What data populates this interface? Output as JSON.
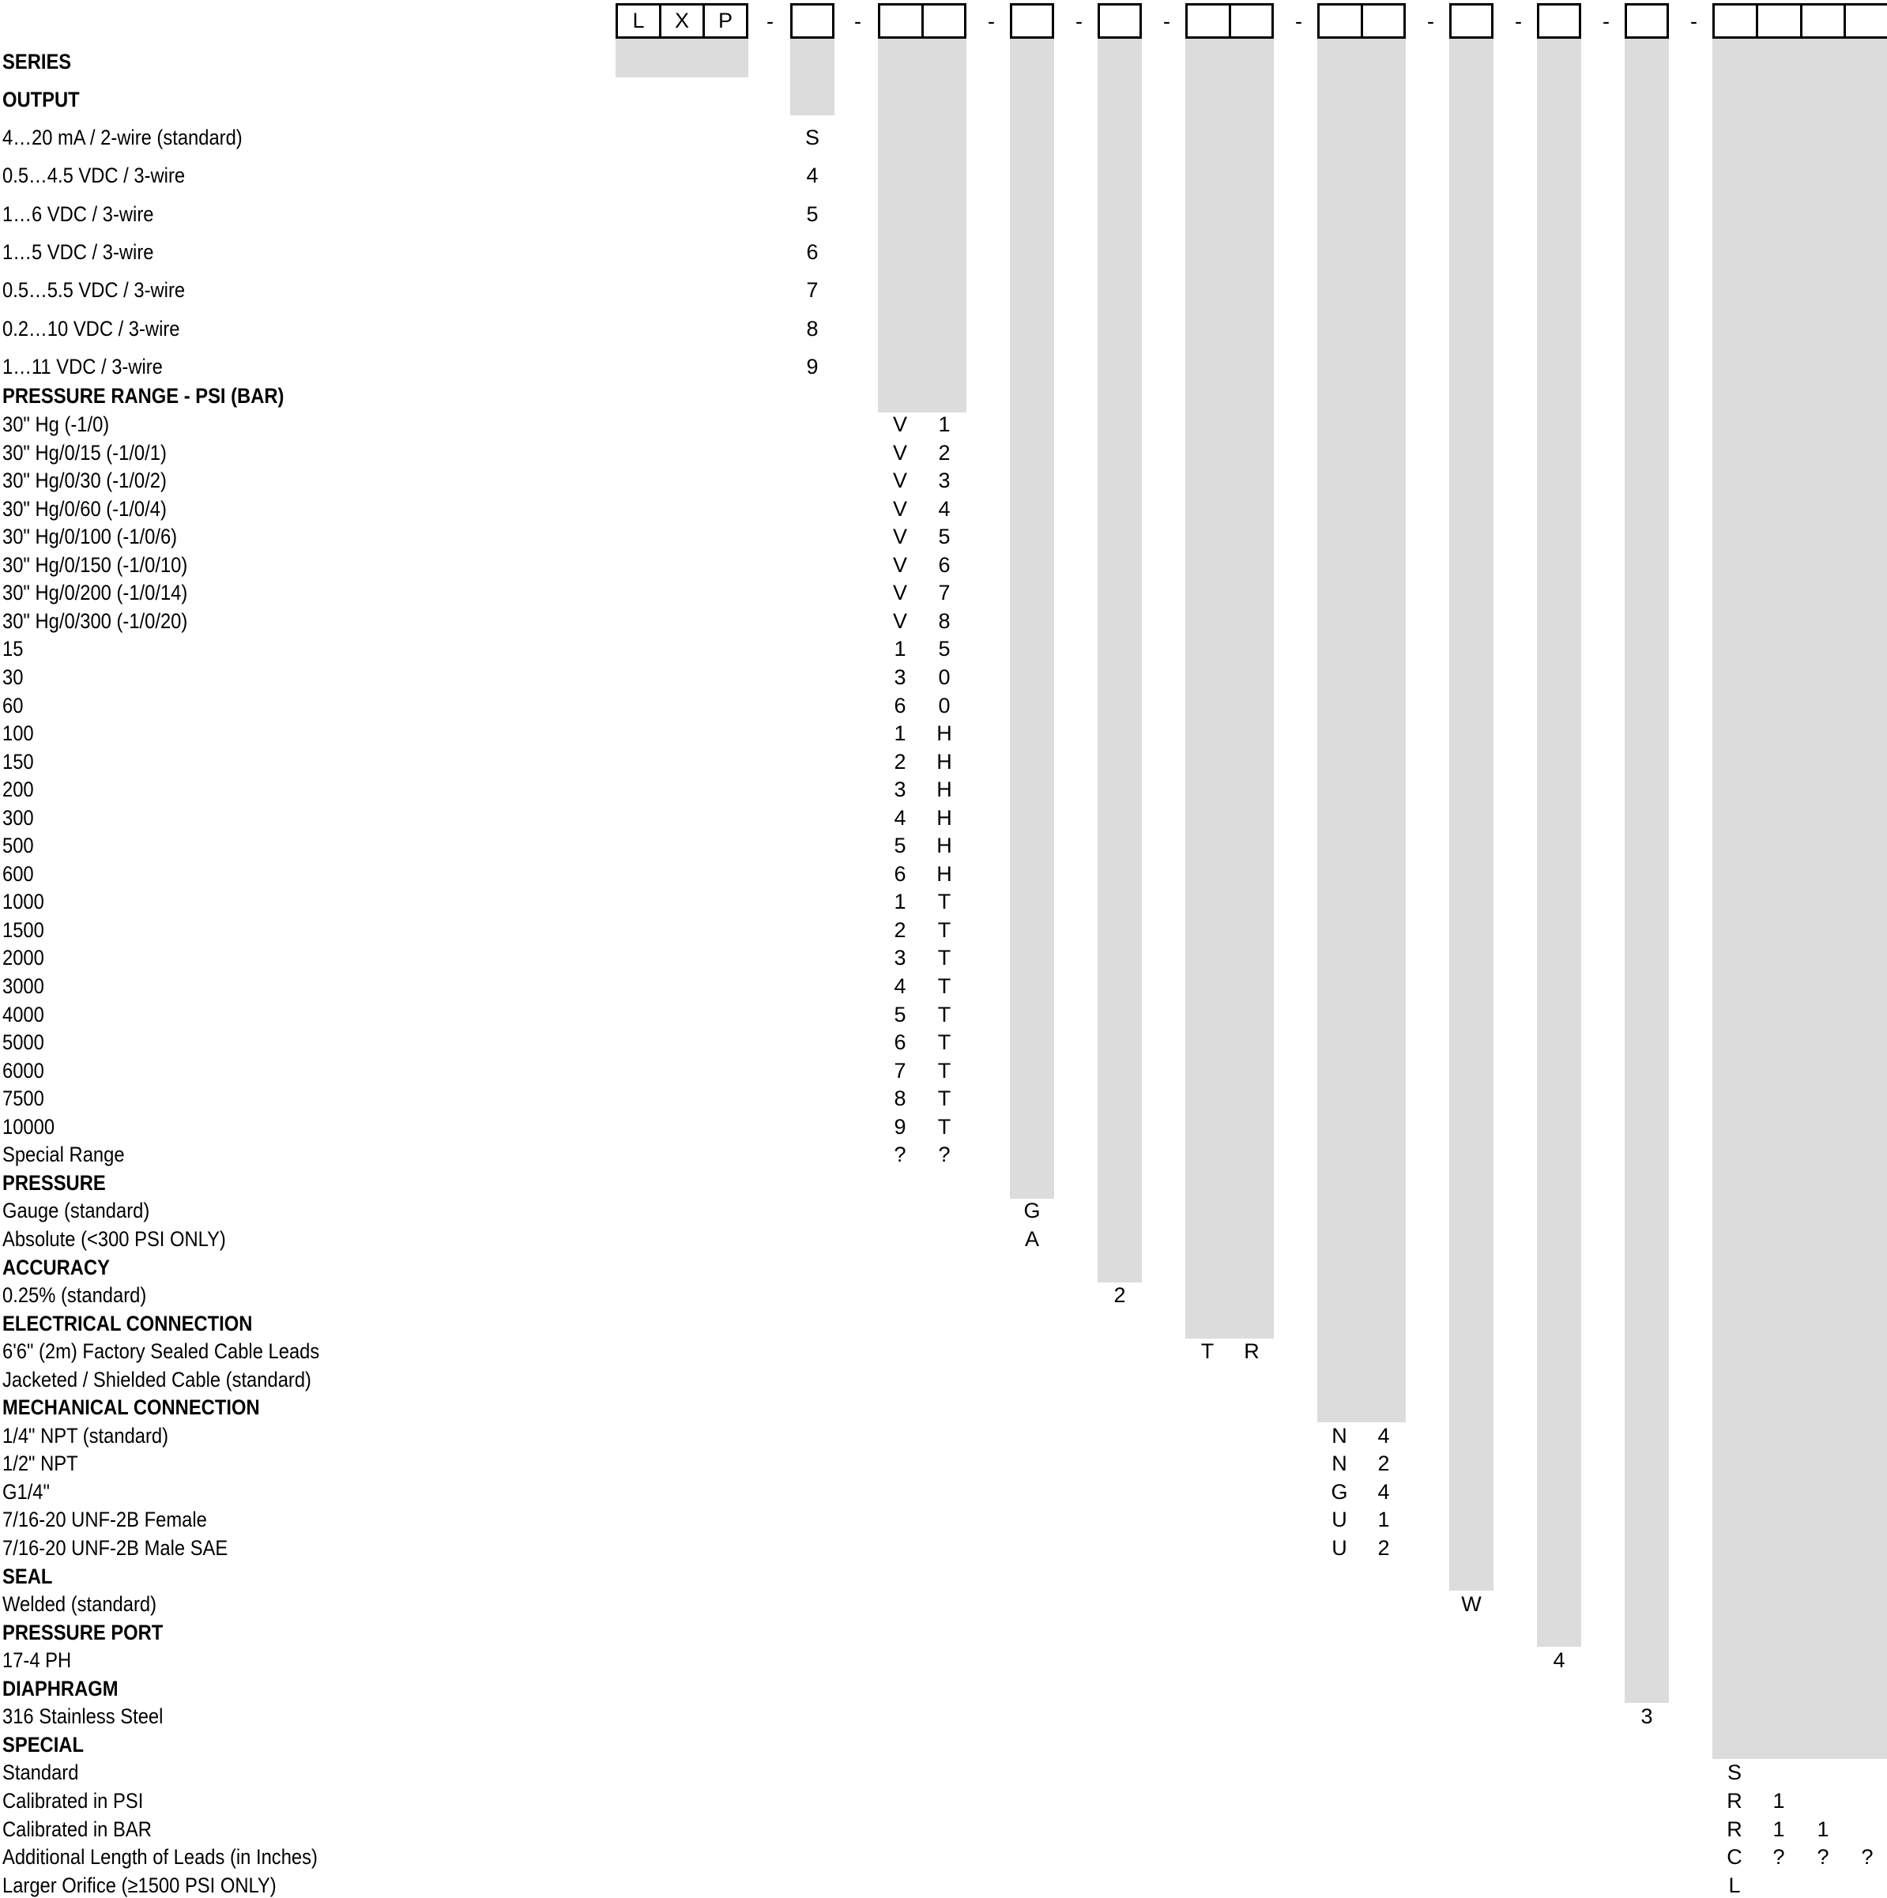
{
  "header": {
    "series_code": [
      "L",
      "X",
      "P"
    ],
    "separator": "-"
  },
  "rows": [
    {
      "label": "SERIES",
      "heading": true
    },
    {
      "label": "OUTPUT",
      "heading": true
    },
    {
      "label": "4…20 mA / 2-wire (standard)",
      "codes": {
        "g1": [
          "S"
        ]
      }
    },
    {
      "label": "0.5…4.5 VDC / 3-wire",
      "codes": {
        "g1": [
          "4"
        ]
      }
    },
    {
      "label": "1…6 VDC / 3-wire",
      "codes": {
        "g1": [
          "5"
        ]
      }
    },
    {
      "label": "1…5 VDC / 3-wire",
      "codes": {
        "g1": [
          "6"
        ]
      }
    },
    {
      "label": "0.5…5.5 VDC / 3-wire",
      "codes": {
        "g1": [
          "7"
        ]
      }
    },
    {
      "label": "0.2…10 VDC / 3-wire",
      "codes": {
        "g1": [
          "8"
        ]
      }
    },
    {
      "label": "1…11 VDC / 3-wire",
      "codes": {
        "g1": [
          "9"
        ]
      }
    },
    {
      "label": "PRESSURE RANGE - PSI (BAR)",
      "heading": true
    },
    {
      "label": "30\" Hg (-1/0)",
      "codes": {
        "g2": [
          "V",
          "1"
        ]
      }
    },
    {
      "label": "30\" Hg/0/15 (-1/0/1)",
      "codes": {
        "g2": [
          "V",
          "2"
        ]
      }
    },
    {
      "label": "30\" Hg/0/30 (-1/0/2)",
      "codes": {
        "g2": [
          "V",
          "3"
        ]
      }
    },
    {
      "label": "30\" Hg/0/60 (-1/0/4)",
      "codes": {
        "g2": [
          "V",
          "4"
        ]
      }
    },
    {
      "label": "30\" Hg/0/100 (-1/0/6)",
      "codes": {
        "g2": [
          "V",
          "5"
        ]
      }
    },
    {
      "label": "30\" Hg/0/150 (-1/0/10)",
      "codes": {
        "g2": [
          "V",
          "6"
        ]
      }
    },
    {
      "label": "30\" Hg/0/200 (-1/0/14)",
      "codes": {
        "g2": [
          "V",
          "7"
        ]
      }
    },
    {
      "label": "30\" Hg/0/300 (-1/0/20)",
      "codes": {
        "g2": [
          "V",
          "8"
        ]
      }
    },
    {
      "label": "15",
      "codes": {
        "g2": [
          "1",
          "5"
        ]
      }
    },
    {
      "label": "30",
      "codes": {
        "g2": [
          "3",
          "0"
        ]
      }
    },
    {
      "label": "60",
      "codes": {
        "g2": [
          "6",
          "0"
        ]
      }
    },
    {
      "label": "100",
      "codes": {
        "g2": [
          "1",
          "H"
        ]
      }
    },
    {
      "label": "150",
      "codes": {
        "g2": [
          "2",
          "H"
        ]
      }
    },
    {
      "label": "200",
      "codes": {
        "g2": [
          "3",
          "H"
        ]
      }
    },
    {
      "label": "300",
      "codes": {
        "g2": [
          "4",
          "H"
        ]
      }
    },
    {
      "label": "500",
      "codes": {
        "g2": [
          "5",
          "H"
        ]
      }
    },
    {
      "label": "600",
      "codes": {
        "g2": [
          "6",
          "H"
        ]
      }
    },
    {
      "label": "1000",
      "codes": {
        "g2": [
          "1",
          "T"
        ]
      }
    },
    {
      "label": "1500",
      "codes": {
        "g2": [
          "2",
          "T"
        ]
      }
    },
    {
      "label": "2000",
      "codes": {
        "g2": [
          "3",
          "T"
        ]
      }
    },
    {
      "label": "3000",
      "codes": {
        "g2": [
          "4",
          "T"
        ]
      }
    },
    {
      "label": "4000",
      "codes": {
        "g2": [
          "5",
          "T"
        ]
      }
    },
    {
      "label": "5000",
      "codes": {
        "g2": [
          "6",
          "T"
        ]
      }
    },
    {
      "label": "6000",
      "codes": {
        "g2": [
          "7",
          "T"
        ]
      }
    },
    {
      "label": "7500",
      "codes": {
        "g2": [
          "8",
          "T"
        ]
      }
    },
    {
      "label": "10000",
      "codes": {
        "g2": [
          "9",
          "T"
        ]
      }
    },
    {
      "label": "Special Range",
      "codes": {
        "g2": [
          "?",
          "?"
        ]
      }
    },
    {
      "label": "PRESSURE",
      "heading": true
    },
    {
      "label": "Gauge (standard)",
      "codes": {
        "g3": [
          "G"
        ]
      }
    },
    {
      "label": "Absolute (<300 PSI ONLY)",
      "codes": {
        "g3": [
          "A"
        ]
      }
    },
    {
      "label": "ACCURACY",
      "heading": true
    },
    {
      "label": "0.25% (standard)",
      "codes": {
        "g4": [
          "2"
        ]
      }
    },
    {
      "label": "ELECTRICAL CONNECTION",
      "heading": true
    },
    {
      "label": "6'6\" (2m) Factory Sealed Cable Leads",
      "codes": {
        "g5": [
          "T",
          "R"
        ]
      }
    },
    {
      "label": "Jacketed / Shielded Cable (standard)"
    },
    {
      "label": "MECHANICAL CONNECTION",
      "heading": true
    },
    {
      "label": "1/4\" NPT (standard)",
      "codes": {
        "g6": [
          "N",
          "4"
        ]
      }
    },
    {
      "label": "1/2\" NPT",
      "codes": {
        "g6": [
          "N",
          "2"
        ]
      }
    },
    {
      "label": "G1/4\"",
      "codes": {
        "g6": [
          "G",
          "4"
        ]
      }
    },
    {
      "label": "7/16-20 UNF-2B Female",
      "codes": {
        "g6": [
          "U",
          "1"
        ]
      }
    },
    {
      "label": "7/16-20 UNF-2B Male SAE",
      "codes": {
        "g6": [
          "U",
          "2"
        ]
      }
    },
    {
      "label": "SEAL",
      "heading": true
    },
    {
      "label": "Welded (standard)",
      "codes": {
        "g7": [
          "W"
        ]
      }
    },
    {
      "label": "PRESSURE PORT",
      "heading": true
    },
    {
      "label": "17-4 PH",
      "codes": {
        "g8": [
          "4"
        ]
      }
    },
    {
      "label": "DIAPHRAGM",
      "heading": true
    },
    {
      "label": "316 Stainless Steel",
      "codes": {
        "g9": [
          "3"
        ]
      }
    },
    {
      "label": "SPECIAL",
      "heading": true
    },
    {
      "label": "Standard",
      "codes": {
        "g10": [
          "S"
        ]
      }
    },
    {
      "label": "Calibrated in PSI",
      "codes": {
        "g10": [
          "R",
          "1"
        ]
      }
    },
    {
      "label": "Calibrated in BAR",
      "codes": {
        "g10": [
          "R",
          "1",
          "1"
        ]
      }
    },
    {
      "label": "Additional Length of Leads (in Inches)",
      "codes": {
        "g10": [
          "C",
          "?",
          "?",
          "?"
        ]
      }
    },
    {
      "label": "Larger Orifice (≥1500 PSI ONLY)",
      "codes": {
        "g10": [
          "L"
        ]
      }
    }
  ],
  "colors": {
    "band": "#dcdcdc",
    "border": "#000000"
  }
}
